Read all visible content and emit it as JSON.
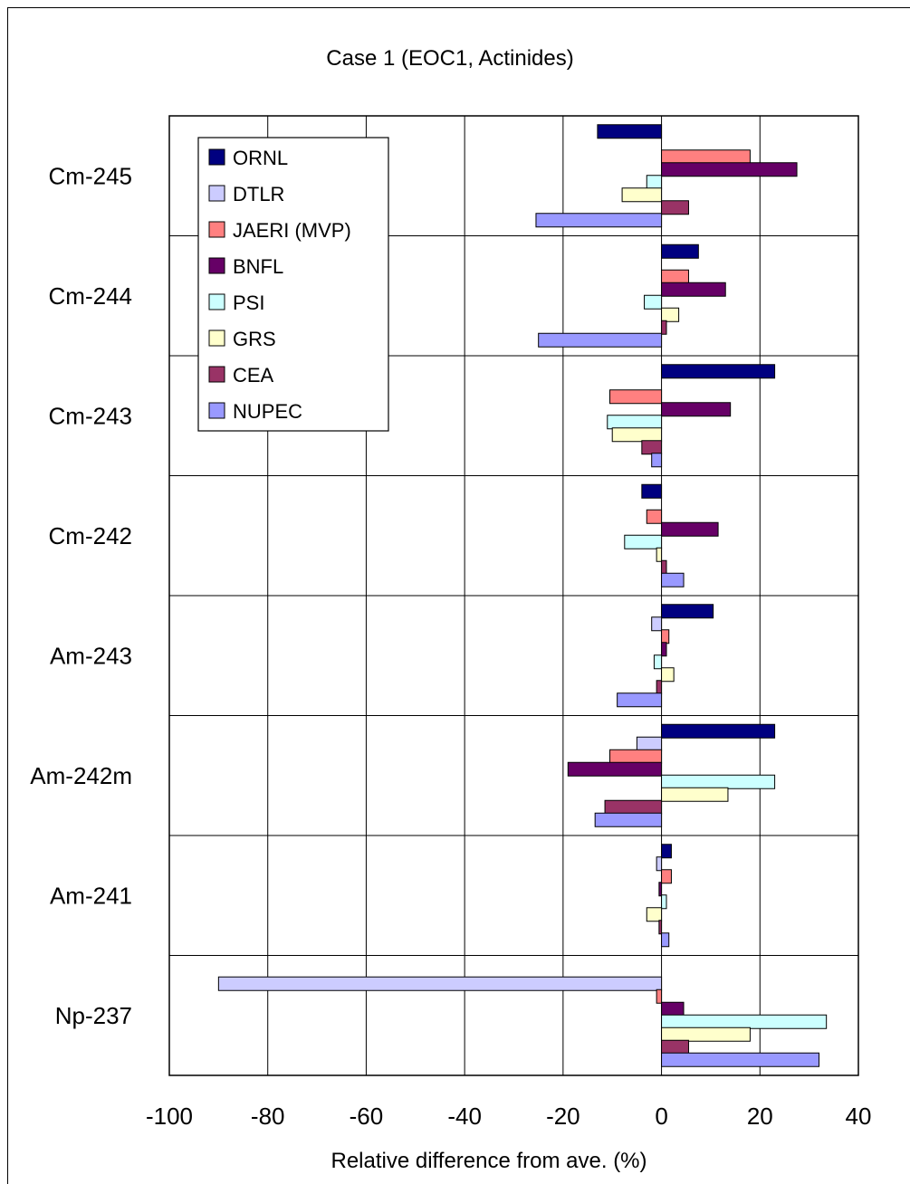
{
  "chart_data": {
    "type": "bar",
    "orientation": "horizontal",
    "title": "Case 1 (EOC1, Actinides)",
    "xlabel": "Relative difference from ave. (%)",
    "ylabel": "",
    "xlim": [
      -100,
      40
    ],
    "xticks": [
      "-100",
      "-80",
      "-60",
      "-40",
      "-20",
      "0",
      "20",
      "40"
    ],
    "xtick_values": [
      -100,
      -80,
      -60,
      -40,
      -20,
      0,
      20,
      40
    ],
    "grid": true,
    "legend_position": "top-left",
    "categories": [
      "Cm-245",
      "Cm-244",
      "Cm-243",
      "Cm-242",
      "Am-243",
      "Am-242m",
      "Am-241",
      "Np-237"
    ],
    "series": [
      {
        "name": "ORNL",
        "color": "#000080",
        "values": [
          -13,
          7.5,
          23,
          -4,
          10.5,
          23,
          2,
          0
        ]
      },
      {
        "name": "DTLR",
        "color": "#CCCCFF",
        "values": [
          0,
          0,
          0,
          0,
          -2,
          -5,
          -1,
          -90
        ]
      },
      {
        "name": "JAERI (MVP)",
        "color": "#FF8080",
        "values": [
          18,
          5.5,
          -10.5,
          -3,
          1.5,
          -10.5,
          2,
          -1
        ]
      },
      {
        "name": "BNFL",
        "color": "#660066",
        "values": [
          27.5,
          13,
          14,
          11.5,
          1,
          -19,
          -0.5,
          4.5
        ]
      },
      {
        "name": "PSI",
        "color": "#CCFFFF",
        "values": [
          -3,
          -3.5,
          -11,
          -7.5,
          -1.5,
          23,
          1,
          33.5
        ]
      },
      {
        "name": "GRS",
        "color": "#FFFFCC",
        "values": [
          -8,
          3.5,
          -10,
          -1,
          2.5,
          13.5,
          -3,
          18
        ]
      },
      {
        "name": "CEA",
        "color": "#993366",
        "values": [
          5.5,
          1,
          -4,
          1,
          -1,
          -11.5,
          -0.5,
          5.5
        ]
      },
      {
        "name": "NUPEC",
        "color": "#9999FF",
        "values": [
          -25.5,
          -25,
          -2,
          4.5,
          -9,
          -13.5,
          1.5,
          32
        ]
      }
    ]
  }
}
